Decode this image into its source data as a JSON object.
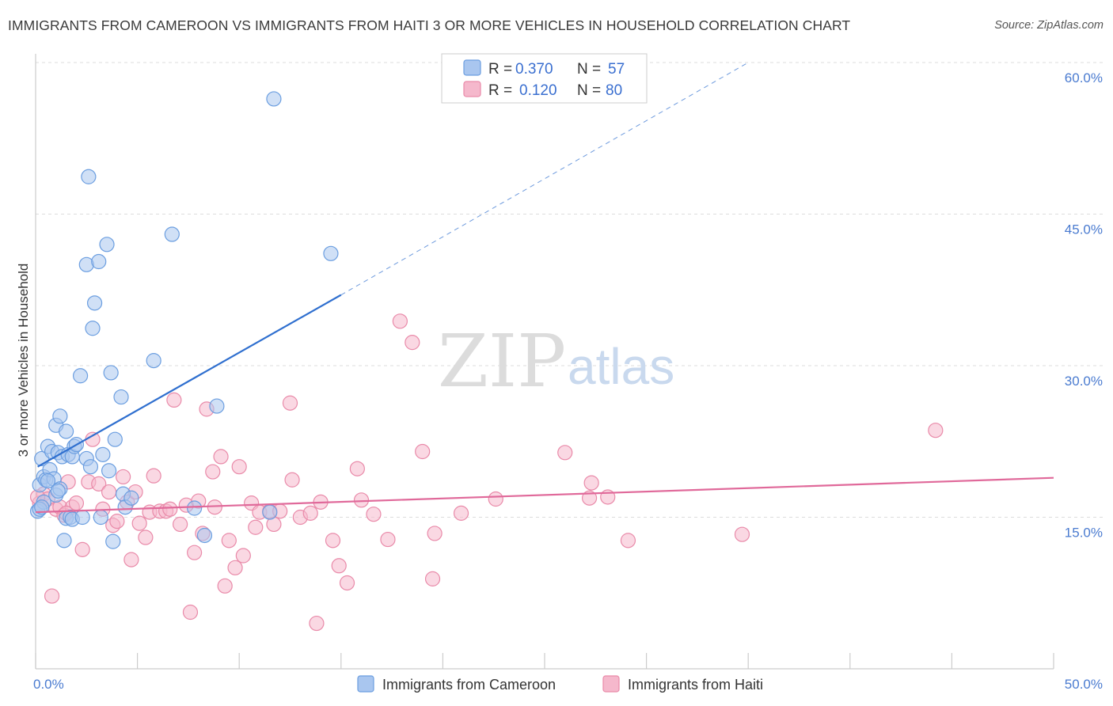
{
  "title": "IMMIGRANTS FROM CAMEROON VS IMMIGRANTS FROM HAITI 3 OR MORE VEHICLES IN HOUSEHOLD CORRELATION CHART",
  "source": "Source: ZipAtlas.com",
  "watermark": {
    "zip": "ZIP",
    "atlas": "atlas"
  },
  "colors": {
    "cameroon_fill": "#a9c6ef",
    "cameroon_stroke": "#6b9ee0",
    "cameroon_line": "#2f6fcf",
    "haiti_fill": "#f5b8cc",
    "haiti_stroke": "#e98aa9",
    "haiti_line": "#e0699a",
    "grid": "#dddddd",
    "tick_label": "#4a7bd0"
  },
  "legend": {
    "cameroon": {
      "r_label": "R =",
      "r_value": "0.370",
      "n_label": "N =",
      "n_value": "57"
    },
    "haiti": {
      "r_label": "R =",
      "r_value": "0.120",
      "n_label": "N =",
      "n_value": "80"
    }
  },
  "chart_data": {
    "type": "scatter",
    "title": "IMMIGRANTS FROM CAMEROON VS IMMIGRANTS FROM HAITI 3 OR MORE VEHICLES IN HOUSEHOLD CORRELATION CHART",
    "xlabel": "",
    "ylabel": "3 or more Vehicles in Household",
    "xlim": [
      0,
      50
    ],
    "ylim": [
      0,
      60
    ],
    "x_tick_labels": [
      "0.0%",
      "50.0%"
    ],
    "y_ticks": [
      15,
      30,
      45,
      60
    ],
    "y_tick_labels": [
      "15.0%",
      "30.0%",
      "45.0%",
      "60.0%"
    ],
    "grid": true,
    "legend_position": "top-center",
    "series": [
      {
        "name": "Immigrants from Cameroon",
        "color": "#6b9ee0",
        "trend": {
          "x": [
            0.1,
            15.0
          ],
          "y": [
            20.0,
            37.0
          ],
          "dashed_extension_to": [
            35.0,
            60.0
          ]
        },
        "points": [
          [
            0.1,
            15.6
          ],
          [
            0.2,
            18.2
          ],
          [
            0.3,
            20.8
          ],
          [
            0.4,
            19.0
          ],
          [
            0.4,
            16.5
          ],
          [
            0.5,
            18.7
          ],
          [
            0.6,
            22.0
          ],
          [
            0.7,
            19.7
          ],
          [
            0.8,
            21.5
          ],
          [
            0.9,
            18.8
          ],
          [
            1.0,
            24.1
          ],
          [
            1.0,
            17.2
          ],
          [
            1.1,
            21.4
          ],
          [
            1.2,
            17.8
          ],
          [
            1.2,
            25.0
          ],
          [
            1.3,
            21.0
          ],
          [
            1.4,
            12.7
          ],
          [
            1.5,
            23.5
          ],
          [
            1.5,
            14.9
          ],
          [
            1.6,
            21.2
          ],
          [
            1.7,
            15.0
          ],
          [
            1.8,
            21.0
          ],
          [
            1.8,
            14.8
          ],
          [
            1.9,
            22.0
          ],
          [
            2.0,
            22.2
          ],
          [
            2.2,
            29.0
          ],
          [
            2.3,
            15.0
          ],
          [
            2.5,
            40.0
          ],
          [
            2.5,
            20.8
          ],
          [
            2.6,
            48.7
          ],
          [
            2.7,
            20.0
          ],
          [
            2.8,
            33.7
          ],
          [
            2.9,
            36.2
          ],
          [
            3.1,
            40.3
          ],
          [
            3.2,
            15.0
          ],
          [
            3.3,
            21.2
          ],
          [
            3.5,
            42.0
          ],
          [
            3.6,
            19.6
          ],
          [
            3.7,
            29.3
          ],
          [
            3.8,
            12.6
          ],
          [
            3.9,
            22.7
          ],
          [
            4.2,
            26.9
          ],
          [
            4.3,
            17.3
          ],
          [
            4.4,
            16.0
          ],
          [
            4.7,
            16.9
          ],
          [
            5.8,
            30.5
          ],
          [
            6.7,
            43.0
          ],
          [
            7.8,
            15.9
          ],
          [
            8.3,
            13.2
          ],
          [
            8.9,
            26.0
          ],
          [
            11.5,
            15.5
          ],
          [
            11.7,
            56.4
          ],
          [
            14.5,
            41.1
          ],
          [
            0.2,
            15.8
          ],
          [
            0.6,
            18.6
          ],
          [
            0.3,
            16.0
          ],
          [
            1.1,
            17.6
          ]
        ]
      },
      {
        "name": "Immigrants from Haiti",
        "color": "#e98aa9",
        "trend": {
          "x": [
            0.0,
            50.0
          ],
          "y": [
            15.5,
            18.9
          ]
        },
        "points": [
          [
            0.2,
            16.4
          ],
          [
            0.4,
            17.3
          ],
          [
            0.6,
            16.8
          ],
          [
            0.8,
            7.2
          ],
          [
            1.0,
            15.8
          ],
          [
            1.2,
            16.0
          ],
          [
            1.4,
            15.2
          ],
          [
            1.6,
            18.5
          ],
          [
            1.8,
            16.0
          ],
          [
            2.0,
            16.4
          ],
          [
            2.3,
            11.8
          ],
          [
            2.6,
            18.5
          ],
          [
            2.8,
            22.7
          ],
          [
            3.1,
            18.3
          ],
          [
            3.3,
            15.8
          ],
          [
            3.6,
            17.5
          ],
          [
            3.8,
            14.2
          ],
          [
            4.0,
            14.6
          ],
          [
            4.3,
            19.0
          ],
          [
            4.5,
            16.5
          ],
          [
            4.7,
            10.8
          ],
          [
            4.9,
            17.5
          ],
          [
            5.1,
            14.4
          ],
          [
            5.4,
            13.0
          ],
          [
            5.6,
            15.5
          ],
          [
            5.8,
            19.1
          ],
          [
            6.1,
            15.6
          ],
          [
            6.4,
            15.6
          ],
          [
            6.6,
            15.8
          ],
          [
            6.8,
            26.6
          ],
          [
            7.1,
            14.3
          ],
          [
            7.4,
            16.2
          ],
          [
            7.6,
            5.6
          ],
          [
            7.8,
            11.5
          ],
          [
            8.0,
            16.6
          ],
          [
            8.2,
            13.4
          ],
          [
            8.4,
            25.7
          ],
          [
            8.7,
            19.5
          ],
          [
            8.8,
            16.0
          ],
          [
            9.1,
            21.0
          ],
          [
            9.3,
            8.2
          ],
          [
            9.5,
            12.7
          ],
          [
            9.8,
            10.0
          ],
          [
            10.0,
            20.0
          ],
          [
            10.2,
            11.2
          ],
          [
            10.6,
            16.4
          ],
          [
            10.8,
            14.0
          ],
          [
            11.0,
            15.5
          ],
          [
            11.5,
            15.6
          ],
          [
            11.7,
            14.3
          ],
          [
            12.0,
            15.6
          ],
          [
            12.5,
            26.3
          ],
          [
            12.6,
            18.7
          ],
          [
            13.0,
            15.0
          ],
          [
            13.5,
            15.4
          ],
          [
            13.8,
            4.5
          ],
          [
            14.0,
            16.5
          ],
          [
            14.6,
            12.7
          ],
          [
            14.9,
            10.2
          ],
          [
            15.3,
            8.5
          ],
          [
            15.8,
            19.8
          ],
          [
            16.0,
            16.7
          ],
          [
            16.6,
            15.3
          ],
          [
            17.3,
            12.8
          ],
          [
            17.9,
            34.4
          ],
          [
            18.5,
            32.3
          ],
          [
            19.0,
            21.5
          ],
          [
            19.5,
            8.9
          ],
          [
            19.6,
            13.4
          ],
          [
            20.9,
            15.4
          ],
          [
            22.6,
            16.8
          ],
          [
            26.0,
            21.4
          ],
          [
            27.2,
            16.9
          ],
          [
            27.3,
            18.4
          ],
          [
            28.1,
            17.0
          ],
          [
            29.1,
            12.7
          ],
          [
            34.7,
            13.3
          ],
          [
            44.2,
            23.6
          ],
          [
            0.1,
            17.0
          ],
          [
            1.5,
            15.4
          ]
        ]
      }
    ]
  },
  "bottom_legend": [
    {
      "label": "Immigrants from Cameroon",
      "swatch": "cameroon"
    },
    {
      "label": "Immigrants from Haiti",
      "swatch": "haiti"
    }
  ]
}
